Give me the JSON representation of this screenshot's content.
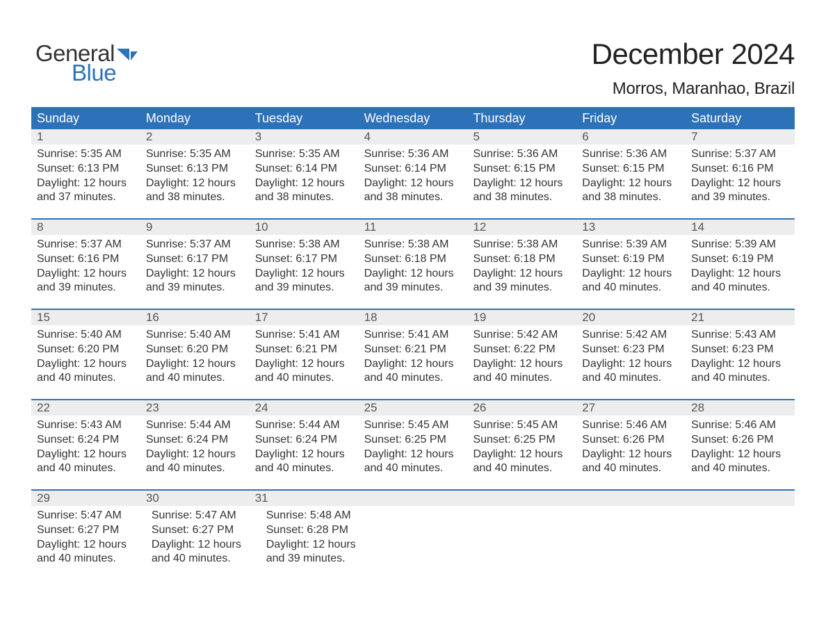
{
  "logo": {
    "word1": "General",
    "word2": "Blue",
    "shape_color": "#2d72b8",
    "text1_color": "#333333",
    "text2_color": "#2d72b8"
  },
  "header": {
    "title": "December 2024",
    "subtitle": "Morros, Maranhao, Brazil"
  },
  "colors": {
    "header_bg": "#2d72b8",
    "header_text": "#ffffff",
    "daynum_bg": "#ededed",
    "daynum_text": "#555555",
    "body_text": "#333333",
    "week_border": "#2d72b8",
    "background": "#ffffff"
  },
  "day_names": [
    "Sunday",
    "Monday",
    "Tuesday",
    "Wednesday",
    "Thursday",
    "Friday",
    "Saturday"
  ],
  "weeks": [
    {
      "numbers": [
        "1",
        "2",
        "3",
        "4",
        "5",
        "6",
        "7"
      ],
      "cells": [
        {
          "sunrise": "Sunrise: 5:35 AM",
          "sunset": "Sunset: 6:13 PM",
          "day1": "Daylight: 12 hours",
          "day2": "and 37 minutes."
        },
        {
          "sunrise": "Sunrise: 5:35 AM",
          "sunset": "Sunset: 6:13 PM",
          "day1": "Daylight: 12 hours",
          "day2": "and 38 minutes."
        },
        {
          "sunrise": "Sunrise: 5:35 AM",
          "sunset": "Sunset: 6:14 PM",
          "day1": "Daylight: 12 hours",
          "day2": "and 38 minutes."
        },
        {
          "sunrise": "Sunrise: 5:36 AM",
          "sunset": "Sunset: 6:14 PM",
          "day1": "Daylight: 12 hours",
          "day2": "and 38 minutes."
        },
        {
          "sunrise": "Sunrise: 5:36 AM",
          "sunset": "Sunset: 6:15 PM",
          "day1": "Daylight: 12 hours",
          "day2": "and 38 minutes."
        },
        {
          "sunrise": "Sunrise: 5:36 AM",
          "sunset": "Sunset: 6:15 PM",
          "day1": "Daylight: 12 hours",
          "day2": "and 38 minutes."
        },
        {
          "sunrise": "Sunrise: 5:37 AM",
          "sunset": "Sunset: 6:16 PM",
          "day1": "Daylight: 12 hours",
          "day2": "and 39 minutes."
        }
      ]
    },
    {
      "numbers": [
        "8",
        "9",
        "10",
        "11",
        "12",
        "13",
        "14"
      ],
      "cells": [
        {
          "sunrise": "Sunrise: 5:37 AM",
          "sunset": "Sunset: 6:16 PM",
          "day1": "Daylight: 12 hours",
          "day2": "and 39 minutes."
        },
        {
          "sunrise": "Sunrise: 5:37 AM",
          "sunset": "Sunset: 6:17 PM",
          "day1": "Daylight: 12 hours",
          "day2": "and 39 minutes."
        },
        {
          "sunrise": "Sunrise: 5:38 AM",
          "sunset": "Sunset: 6:17 PM",
          "day1": "Daylight: 12 hours",
          "day2": "and 39 minutes."
        },
        {
          "sunrise": "Sunrise: 5:38 AM",
          "sunset": "Sunset: 6:18 PM",
          "day1": "Daylight: 12 hours",
          "day2": "and 39 minutes."
        },
        {
          "sunrise": "Sunrise: 5:38 AM",
          "sunset": "Sunset: 6:18 PM",
          "day1": "Daylight: 12 hours",
          "day2": "and 39 minutes."
        },
        {
          "sunrise": "Sunrise: 5:39 AM",
          "sunset": "Sunset: 6:19 PM",
          "day1": "Daylight: 12 hours",
          "day2": "and 40 minutes."
        },
        {
          "sunrise": "Sunrise: 5:39 AM",
          "sunset": "Sunset: 6:19 PM",
          "day1": "Daylight: 12 hours",
          "day2": "and 40 minutes."
        }
      ]
    },
    {
      "numbers": [
        "15",
        "16",
        "17",
        "18",
        "19",
        "20",
        "21"
      ],
      "cells": [
        {
          "sunrise": "Sunrise: 5:40 AM",
          "sunset": "Sunset: 6:20 PM",
          "day1": "Daylight: 12 hours",
          "day2": "and 40 minutes."
        },
        {
          "sunrise": "Sunrise: 5:40 AM",
          "sunset": "Sunset: 6:20 PM",
          "day1": "Daylight: 12 hours",
          "day2": "and 40 minutes."
        },
        {
          "sunrise": "Sunrise: 5:41 AM",
          "sunset": "Sunset: 6:21 PM",
          "day1": "Daylight: 12 hours",
          "day2": "and 40 minutes."
        },
        {
          "sunrise": "Sunrise: 5:41 AM",
          "sunset": "Sunset: 6:21 PM",
          "day1": "Daylight: 12 hours",
          "day2": "and 40 minutes."
        },
        {
          "sunrise": "Sunrise: 5:42 AM",
          "sunset": "Sunset: 6:22 PM",
          "day1": "Daylight: 12 hours",
          "day2": "and 40 minutes."
        },
        {
          "sunrise": "Sunrise: 5:42 AM",
          "sunset": "Sunset: 6:23 PM",
          "day1": "Daylight: 12 hours",
          "day2": "and 40 minutes."
        },
        {
          "sunrise": "Sunrise: 5:43 AM",
          "sunset": "Sunset: 6:23 PM",
          "day1": "Daylight: 12 hours",
          "day2": "and 40 minutes."
        }
      ]
    },
    {
      "numbers": [
        "22",
        "23",
        "24",
        "25",
        "26",
        "27",
        "28"
      ],
      "cells": [
        {
          "sunrise": "Sunrise: 5:43 AM",
          "sunset": "Sunset: 6:24 PM",
          "day1": "Daylight: 12 hours",
          "day2": "and 40 minutes."
        },
        {
          "sunrise": "Sunrise: 5:44 AM",
          "sunset": "Sunset: 6:24 PM",
          "day1": "Daylight: 12 hours",
          "day2": "and 40 minutes."
        },
        {
          "sunrise": "Sunrise: 5:44 AM",
          "sunset": "Sunset: 6:24 PM",
          "day1": "Daylight: 12 hours",
          "day2": "and 40 minutes."
        },
        {
          "sunrise": "Sunrise: 5:45 AM",
          "sunset": "Sunset: 6:25 PM",
          "day1": "Daylight: 12 hours",
          "day2": "and 40 minutes."
        },
        {
          "sunrise": "Sunrise: 5:45 AM",
          "sunset": "Sunset: 6:25 PM",
          "day1": "Daylight: 12 hours",
          "day2": "and 40 minutes."
        },
        {
          "sunrise": "Sunrise: 5:46 AM",
          "sunset": "Sunset: 6:26 PM",
          "day1": "Daylight: 12 hours",
          "day2": "and 40 minutes."
        },
        {
          "sunrise": "Sunrise: 5:46 AM",
          "sunset": "Sunset: 6:26 PM",
          "day1": "Daylight: 12 hours",
          "day2": "and 40 minutes."
        }
      ]
    },
    {
      "numbers": [
        "29",
        "30",
        "31",
        "",
        "",
        "",
        ""
      ],
      "cells": [
        {
          "sunrise": "Sunrise: 5:47 AM",
          "sunset": "Sunset: 6:27 PM",
          "day1": "Daylight: 12 hours",
          "day2": "and 40 minutes."
        },
        {
          "sunrise": "Sunrise: 5:47 AM",
          "sunset": "Sunset: 6:27 PM",
          "day1": "Daylight: 12 hours",
          "day2": "and 40 minutes."
        },
        {
          "sunrise": "Sunrise: 5:48 AM",
          "sunset": "Sunset: 6:28 PM",
          "day1": "Daylight: 12 hours",
          "day2": "and 39 minutes."
        },
        null,
        null,
        null,
        null
      ]
    }
  ]
}
